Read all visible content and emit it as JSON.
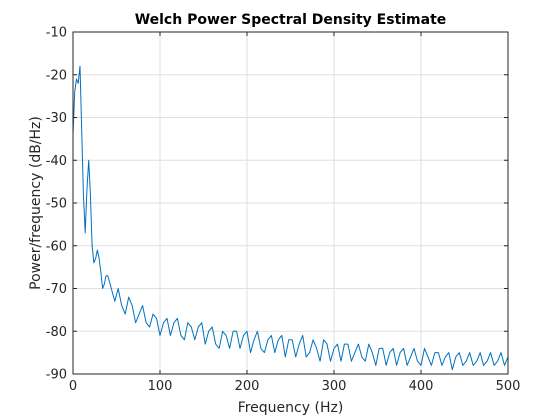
{
  "chart_data": {
    "type": "line",
    "title": "Welch Power Spectral Density Estimate",
    "xlabel": "Frequency (Hz)",
    "ylabel": "Power/frequency (dB/Hz)",
    "xlim": [
      0,
      500
    ],
    "ylim": [
      -90,
      -10
    ],
    "xticks": [
      0,
      100,
      200,
      300,
      400,
      500
    ],
    "yticks": [
      -90,
      -80,
      -70,
      -60,
      -50,
      -40,
      -30,
      -20,
      -10
    ],
    "xtick_labels": [
      "0",
      "100",
      "200",
      "300",
      "400",
      "500"
    ],
    "ytick_labels": [
      "-90",
      "-80",
      "-70",
      "-60",
      "-50",
      "-40",
      "-30",
      "-20",
      "-10"
    ],
    "grid": true,
    "series": [
      {
        "color": "#0072bd",
        "x": [
          0,
          2,
          4,
          6,
          8,
          10,
          12,
          14,
          16,
          18,
          20,
          22,
          24,
          26,
          28,
          30,
          32,
          34,
          36,
          38,
          40,
          44,
          48,
          52,
          56,
          60,
          64,
          68,
          72,
          76,
          80,
          84,
          88,
          92,
          96,
          100,
          104,
          108,
          112,
          116,
          120,
          124,
          128,
          132,
          136,
          140,
          144,
          148,
          152,
          156,
          160,
          164,
          168,
          172,
          176,
          180,
          184,
          188,
          192,
          196,
          200,
          204,
          208,
          212,
          216,
          220,
          224,
          228,
          232,
          236,
          240,
          244,
          248,
          252,
          256,
          260,
          264,
          268,
          272,
          276,
          280,
          284,
          288,
          292,
          296,
          300,
          304,
          308,
          312,
          316,
          320,
          324,
          328,
          332,
          336,
          340,
          344,
          348,
          352,
          356,
          360,
          364,
          368,
          372,
          376,
          380,
          384,
          388,
          392,
          396,
          400,
          404,
          408,
          412,
          416,
          420,
          424,
          428,
          432,
          436,
          440,
          444,
          448,
          452,
          456,
          460,
          464,
          468,
          472,
          476,
          480,
          484,
          488,
          492,
          496,
          500
        ],
        "y": [
          -34,
          -24,
          -21,
          -22,
          -18,
          -33,
          -48,
          -57,
          -47,
          -40,
          -48,
          -60,
          -64,
          -63,
          -61,
          -63,
          -66,
          -70,
          -69,
          -67,
          -67,
          -70,
          -73,
          -70,
          -74,
          -76,
          -72,
          -74,
          -78,
          -76,
          -74,
          -78,
          -79,
          -76,
          -77,
          -81,
          -78,
          -77,
          -81,
          -78,
          -77,
          -81,
          -82,
          -78,
          -79,
          -82,
          -79,
          -78,
          -83,
          -80,
          -79,
          -83,
          -84,
          -80,
          -81,
          -84,
          -80,
          -80,
          -84,
          -81,
          -80,
          -85,
          -82,
          -80,
          -84,
          -85,
          -82,
          -81,
          -85,
          -82,
          -81,
          -86,
          -82,
          -82,
          -86,
          -83,
          -81,
          -86,
          -85,
          -82,
          -84,
          -87,
          -82,
          -83,
          -87,
          -84,
          -83,
          -87,
          -83,
          -83,
          -87,
          -85,
          -83,
          -86,
          -87,
          -83,
          -85,
          -88,
          -84,
          -84,
          -88,
          -85,
          -84,
          -88,
          -85,
          -84,
          -88,
          -86,
          -84,
          -87,
          -88,
          -84,
          -86,
          -88,
          -85,
          -85,
          -88,
          -86,
          -85,
          -89,
          -86,
          -85,
          -88,
          -87,
          -85,
          -88,
          -87,
          -85,
          -88,
          -87,
          -85,
          -88,
          -87,
          -85,
          -88,
          -86
        ]
      }
    ]
  }
}
